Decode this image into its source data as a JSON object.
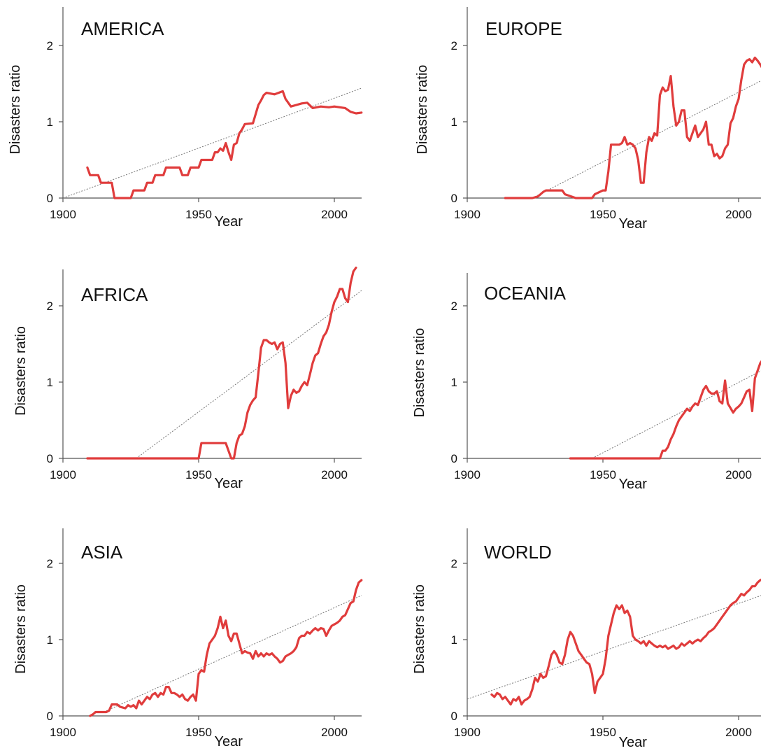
{
  "chart_data": [
    {
      "type": "line",
      "title": "AMERICA",
      "xlabel": "Year",
      "ylabel": "Disasters ratio",
      "xlim": [
        1900,
        2010
      ],
      "ylim": [
        0,
        2.5
      ],
      "xticks": [
        1900,
        1950,
        2000
      ],
      "yticks": [
        0,
        1,
        2
      ],
      "series": [
        {
          "x": [
            1909,
            1910,
            1913,
            1914,
            1918,
            1919,
            1925,
            1926,
            1930,
            1931,
            1933,
            1934,
            1937,
            1938,
            1943,
            1944,
            1946,
            1947,
            1950,
            1951,
            1955,
            1956,
            1957,
            1958,
            1959,
            1960,
            1961,
            1962,
            1963,
            1964,
            1965,
            1966,
            1967,
            1970,
            1971,
            1972,
            1973,
            1974,
            1975,
            1978,
            1981,
            1982,
            1984,
            1986,
            1988,
            1990,
            1992,
            1995,
            1998,
            2000,
            2004,
            2006,
            2008,
            2010
          ],
          "y": [
            0.4,
            0.3,
            0.3,
            0.2,
            0.2,
            0.0,
            0.0,
            0.1,
            0.1,
            0.2,
            0.2,
            0.3,
            0.3,
            0.4,
            0.4,
            0.3,
            0.3,
            0.4,
            0.4,
            0.5,
            0.5,
            0.6,
            0.6,
            0.65,
            0.62,
            0.72,
            0.6,
            0.5,
            0.7,
            0.72,
            0.85,
            0.9,
            0.97,
            0.98,
            1.1,
            1.22,
            1.28,
            1.35,
            1.38,
            1.36,
            1.4,
            1.3,
            1.2,
            1.22,
            1.24,
            1.25,
            1.18,
            1.2,
            1.19,
            1.2,
            1.18,
            1.13,
            1.11,
            1.12
          ]
        },
        {
          "x": [
            1900,
            2010
          ],
          "y": [
            0.0,
            1.44
          ]
        }
      ]
    },
    {
      "type": "line",
      "title": "EUROPE",
      "xlabel": "Year",
      "ylabel": "Disasters ratio",
      "xlim": [
        1900,
        2010
      ],
      "ylim": [
        0,
        2.5
      ],
      "xticks": [
        1900,
        1950,
        2000
      ],
      "yticks": [
        0,
        1,
        2
      ],
      "series": [
        {
          "x": [
            1914,
            1924,
            1926,
            1927,
            1928,
            1929,
            1935,
            1936,
            1940,
            1946,
            1947,
            1950,
            1951,
            1952,
            1953,
            1954,
            1956,
            1957,
            1958,
            1959,
            1960,
            1961,
            1962,
            1963,
            1964,
            1965,
            1966,
            1967,
            1968,
            1969,
            1970,
            1971,
            1972,
            1973,
            1974,
            1975,
            1976,
            1977,
            1978,
            1979,
            1980,
            1981,
            1982,
            1983,
            1984,
            1985,
            1986,
            1987,
            1988,
            1989,
            1990,
            1991,
            1992,
            1993,
            1994,
            1995,
            1996,
            1997,
            1998,
            1999,
            2000,
            2001,
            2002,
            2003,
            2004,
            2005,
            2006,
            2007,
            2008,
            2010
          ],
          "y": [
            0.0,
            0.0,
            0.02,
            0.05,
            0.08,
            0.1,
            0.1,
            0.05,
            0.0,
            0.0,
            0.05,
            0.1,
            0.1,
            0.35,
            0.7,
            0.7,
            0.7,
            0.72,
            0.8,
            0.7,
            0.72,
            0.7,
            0.65,
            0.5,
            0.2,
            0.2,
            0.6,
            0.8,
            0.75,
            0.85,
            0.82,
            1.35,
            1.45,
            1.4,
            1.42,
            1.6,
            1.2,
            0.95,
            1.0,
            1.15,
            1.15,
            0.8,
            0.75,
            0.85,
            0.95,
            0.8,
            0.85,
            0.9,
            1.0,
            0.7,
            0.7,
            0.55,
            0.58,
            0.52,
            0.55,
            0.65,
            0.7,
            0.98,
            1.05,
            1.2,
            1.3,
            1.55,
            1.75,
            1.8,
            1.82,
            1.78,
            1.84,
            1.8,
            1.75,
            1.62
          ]
        },
        {
          "x": [
            1924,
            2010
          ],
          "y": [
            0.0,
            1.57
          ]
        }
      ]
    },
    {
      "type": "line",
      "title": "AFRICA",
      "xlabel": "Year",
      "ylabel": "Disasters ratio",
      "xlim": [
        1900,
        2010
      ],
      "ylim": [
        0,
        2.5
      ],
      "xticks": [
        1900,
        1950,
        2000
      ],
      "yticks": [
        0,
        1,
        2
      ],
      "series": [
        {
          "x": [
            1909,
            1950,
            1951,
            1959,
            1960,
            1962,
            1963,
            1964,
            1965,
            1966,
            1967,
            1968,
            1969,
            1970,
            1971,
            1972,
            1973,
            1974,
            1975,
            1976,
            1977,
            1978,
            1979,
            1980,
            1981,
            1982,
            1983,
            1984,
            1985,
            1986,
            1987,
            1988,
            1989,
            1990,
            1991,
            1992,
            1993,
            1994,
            1995,
            1996,
            1997,
            1998,
            1999,
            2000,
            2001,
            2002,
            2003,
            2004,
            2005,
            2006,
            2007,
            2008
          ],
          "y": [
            0.0,
            0.0,
            0.2,
            0.2,
            0.2,
            0.0,
            0.0,
            0.2,
            0.3,
            0.32,
            0.42,
            0.6,
            0.7,
            0.76,
            0.8,
            1.12,
            1.45,
            1.55,
            1.55,
            1.52,
            1.5,
            1.52,
            1.43,
            1.5,
            1.52,
            1.25,
            0.66,
            0.82,
            0.9,
            0.86,
            0.88,
            0.95,
            1.0,
            0.96,
            1.1,
            1.25,
            1.35,
            1.38,
            1.5,
            1.6,
            1.65,
            1.75,
            1.92,
            2.05,
            2.12,
            2.22,
            2.22,
            2.1,
            2.05,
            2.3,
            2.45,
            2.5
          ]
        },
        {
          "x": [
            1927,
            2010
          ],
          "y": [
            0.0,
            2.2
          ]
        }
      ]
    },
    {
      "type": "line",
      "title": "OCEANIA",
      "xlabel": "Year",
      "ylabel": "Disasters ratio",
      "xlim": [
        1900,
        2010
      ],
      "ylim": [
        0,
        2.5
      ],
      "xticks": [
        1900,
        1950,
        2000
      ],
      "yticks": [
        0,
        1,
        2
      ],
      "series": [
        {
          "x": [
            1938,
            1971,
            1972,
            1973,
            1974,
            1975,
            1976,
            1977,
            1978,
            1979,
            1980,
            1981,
            1982,
            1983,
            1984,
            1985,
            1986,
            1987,
            1988,
            1989,
            1990,
            1991,
            1992,
            1993,
            1994,
            1995,
            1996,
            1997,
            1998,
            1999,
            2000,
            2001,
            2002,
            2003,
            2004,
            2005,
            2006,
            2007,
            2008,
            2009,
            2010
          ],
          "y": [
            0.0,
            0.0,
            0.1,
            0.1,
            0.15,
            0.25,
            0.32,
            0.42,
            0.5,
            0.55,
            0.6,
            0.65,
            0.62,
            0.68,
            0.72,
            0.7,
            0.8,
            0.9,
            0.95,
            0.88,
            0.85,
            0.85,
            0.88,
            0.75,
            0.72,
            1.02,
            0.72,
            0.66,
            0.6,
            0.65,
            0.68,
            0.72,
            0.8,
            0.88,
            0.9,
            0.62,
            1.05,
            1.15,
            1.25,
            1.3,
            1.35
          ]
        },
        {
          "x": [
            1946,
            2010
          ],
          "y": [
            0.0,
            1.18
          ]
        }
      ]
    },
    {
      "type": "line",
      "title": "ASIA",
      "xlabel": "Year",
      "ylabel": "Disasters ratio",
      "xlim": [
        1900,
        2010
      ],
      "ylim": [
        0,
        2.5
      ],
      "xticks": [
        1900,
        1950,
        2000
      ],
      "yticks": [
        0,
        1,
        2
      ],
      "series": [
        {
          "x": [
            1910,
            1911,
            1912,
            1913,
            1916,
            1917,
            1918,
            1920,
            1921,
            1923,
            1924,
            1925,
            1926,
            1927,
            1928,
            1929,
            1930,
            1931,
            1932,
            1933,
            1934,
            1935,
            1936,
            1937,
            1938,
            1939,
            1940,
            1941,
            1942,
            1943,
            1944,
            1945,
            1946,
            1947,
            1948,
            1949,
            1950,
            1951,
            1952,
            1953,
            1954,
            1955,
            1956,
            1957,
            1958,
            1959,
            1960,
            1961,
            1962,
            1963,
            1964,
            1965,
            1966,
            1967,
            1968,
            1969,
            1970,
            1971,
            1972,
            1973,
            1974,
            1975,
            1976,
            1977,
            1978,
            1979,
            1980,
            1981,
            1982,
            1983,
            1984,
            1985,
            1986,
            1987,
            1988,
            1989,
            1990,
            1991,
            1992,
            1993,
            1994,
            1995,
            1996,
            1997,
            1998,
            1999,
            2000,
            2001,
            2002,
            2003,
            2004,
            2005,
            2006,
            2007,
            2008,
            2009,
            2010
          ],
          "y": [
            0.0,
            0.02,
            0.05,
            0.05,
            0.05,
            0.07,
            0.15,
            0.15,
            0.12,
            0.1,
            0.14,
            0.12,
            0.14,
            0.1,
            0.2,
            0.15,
            0.2,
            0.25,
            0.22,
            0.28,
            0.3,
            0.25,
            0.3,
            0.28,
            0.38,
            0.38,
            0.3,
            0.3,
            0.28,
            0.25,
            0.28,
            0.22,
            0.2,
            0.25,
            0.28,
            0.2,
            0.55,
            0.6,
            0.58,
            0.8,
            0.95,
            1.0,
            1.05,
            1.15,
            1.3,
            1.15,
            1.25,
            1.05,
            0.98,
            1.08,
            1.08,
            0.95,
            0.82,
            0.85,
            0.83,
            0.82,
            0.75,
            0.85,
            0.78,
            0.82,
            0.78,
            0.82,
            0.8,
            0.82,
            0.78,
            0.75,
            0.7,
            0.72,
            0.78,
            0.8,
            0.82,
            0.85,
            0.9,
            1.02,
            1.05,
            1.05,
            1.1,
            1.08,
            1.12,
            1.15,
            1.12,
            1.15,
            1.14,
            1.05,
            1.12,
            1.18,
            1.2,
            1.22,
            1.25,
            1.3,
            1.32,
            1.4,
            1.48,
            1.5,
            1.65,
            1.75,
            1.78
          ]
        },
        {
          "x": [
            1915,
            2010
          ],
          "y": [
            0.05,
            1.58
          ]
        }
      ]
    },
    {
      "type": "line",
      "title": "WORLD",
      "xlabel": "Year",
      "ylabel": "Disasters  ratio",
      "xlim": [
        1900,
        2010
      ],
      "ylim": [
        0,
        2.5
      ],
      "xticks": [
        1900,
        1950,
        2000
      ],
      "yticks": [
        0,
        1,
        2
      ],
      "series": [
        {
          "x": [
            1909,
            1910,
            1911,
            1912,
            1913,
            1914,
            1915,
            1916,
            1917,
            1918,
            1919,
            1920,
            1921,
            1922,
            1923,
            1924,
            1925,
            1926,
            1927,
            1928,
            1929,
            1930,
            1931,
            1932,
            1933,
            1934,
            1935,
            1936,
            1937,
            1938,
            1939,
            1940,
            1941,
            1942,
            1943,
            1944,
            1945,
            1946,
            1947,
            1948,
            1949,
            1950,
            1951,
            1952,
            1953,
            1954,
            1955,
            1956,
            1957,
            1958,
            1959,
            1960,
            1961,
            1962,
            1963,
            1964,
            1965,
            1966,
            1967,
            1968,
            1969,
            1970,
            1971,
            1972,
            1973,
            1974,
            1975,
            1976,
            1977,
            1978,
            1979,
            1980,
            1981,
            1982,
            1983,
            1984,
            1985,
            1986,
            1987,
            1988,
            1989,
            1990,
            1991,
            1992,
            1993,
            1994,
            1995,
            1996,
            1997,
            1998,
            1999,
            2000,
            2001,
            2002,
            2003,
            2004,
            2005,
            2006,
            2007,
            2008,
            2009,
            2010
          ],
          "y": [
            0.28,
            0.25,
            0.3,
            0.28,
            0.22,
            0.25,
            0.2,
            0.15,
            0.22,
            0.2,
            0.25,
            0.15,
            0.2,
            0.22,
            0.25,
            0.35,
            0.5,
            0.45,
            0.55,
            0.5,
            0.52,
            0.65,
            0.8,
            0.85,
            0.8,
            0.7,
            0.68,
            0.8,
            1.0,
            1.1,
            1.05,
            0.95,
            0.85,
            0.8,
            0.75,
            0.7,
            0.68,
            0.55,
            0.3,
            0.45,
            0.5,
            0.55,
            0.75,
            1.05,
            1.2,
            1.35,
            1.45,
            1.4,
            1.45,
            1.35,
            1.38,
            1.3,
            1.05,
            1.0,
            0.98,
            0.95,
            0.98,
            0.92,
            0.98,
            0.95,
            0.92,
            0.9,
            0.92,
            0.9,
            0.92,
            0.88,
            0.9,
            0.92,
            0.88,
            0.9,
            0.95,
            0.92,
            0.95,
            0.98,
            0.95,
            0.98,
            1.0,
            0.98,
            1.02,
            1.05,
            1.1,
            1.12,
            1.15,
            1.2,
            1.25,
            1.3,
            1.35,
            1.4,
            1.45,
            1.48,
            1.5,
            1.55,
            1.6,
            1.58,
            1.62,
            1.65,
            1.7,
            1.7,
            1.75,
            1.78,
            1.8,
            1.82
          ]
        },
        {
          "x": [
            1900,
            2010
          ],
          "y": [
            0.22,
            1.6
          ]
        }
      ]
    }
  ]
}
